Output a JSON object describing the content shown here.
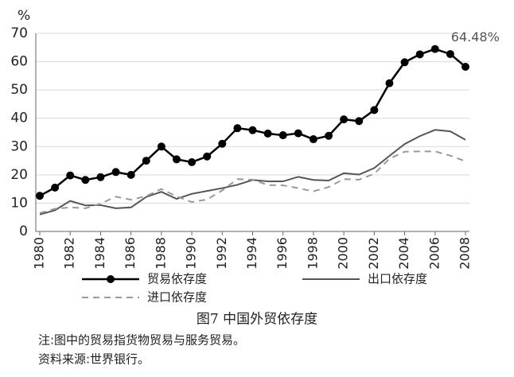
{
  "chart_data": {
    "type": "line",
    "y_label": "%",
    "title": "图7  中国外贸依存度",
    "notes": [
      "注:图中的贸易指货物贸易与服务贸易。",
      "资料来源:世界银行。"
    ],
    "x": [
      1980,
      1981,
      1982,
      1983,
      1984,
      1985,
      1986,
      1987,
      1988,
      1989,
      1990,
      1991,
      1992,
      1993,
      1994,
      1995,
      1996,
      1997,
      1998,
      1999,
      2000,
      2001,
      2002,
      2003,
      2004,
      2005,
      2006,
      2007,
      2008
    ],
    "xlim": [
      1980,
      2008
    ],
    "xticks": [
      1980,
      1982,
      1984,
      1986,
      1988,
      1990,
      1992,
      1994,
      1996,
      1998,
      2000,
      2002,
      2004,
      2006,
      2008
    ],
    "ylim": [
      0,
      70
    ],
    "yticks": [
      0,
      10,
      20,
      30,
      40,
      50,
      60,
      70
    ],
    "grid": true,
    "series": [
      {
        "name": "贸易依存度",
        "color": "#000000",
        "line_style": "solid",
        "marker": "circle",
        "values": [
          12.6,
          15.5,
          19.8,
          18.2,
          19.2,
          21.0,
          20.0,
          25.0,
          30.0,
          25.5,
          24.5,
          26.5,
          31.0,
          36.5,
          35.8,
          34.6,
          34.0,
          34.7,
          32.6,
          33.8,
          39.6,
          39.0,
          42.9,
          52.4,
          59.8,
          62.6,
          64.48,
          62.7,
          58.2
        ],
        "value_labels": [
          null,
          null,
          null,
          null,
          null,
          null,
          null,
          null,
          null,
          null,
          null,
          null,
          null,
          null,
          null,
          null,
          null,
          null,
          null,
          null,
          null,
          null,
          null,
          null,
          null,
          null,
          "64.48%",
          null,
          null
        ]
      },
      {
        "name": "出口依存度",
        "color": "#555555",
        "line_style": "solid",
        "values": [
          6.0,
          7.5,
          10.8,
          9.2,
          9.3,
          8.2,
          8.5,
          12.2,
          14.0,
          11.5,
          13.3,
          14.3,
          15.3,
          16.5,
          18.2,
          17.7,
          17.7,
          19.3,
          18.2,
          18.0,
          20.6,
          20.1,
          22.4,
          26.7,
          30.9,
          33.7,
          35.9,
          35.4,
          32.4
        ]
      },
      {
        "name": "进口依存度",
        "color": "#999999",
        "line_style": "dashed",
        "values": [
          6.5,
          8.0,
          8.5,
          8.2,
          9.8,
          12.3,
          11.2,
          12.5,
          15.0,
          12.4,
          10.4,
          11.3,
          14.5,
          18.5,
          18.3,
          16.4,
          16.3,
          15.3,
          14.2,
          15.7,
          18.5,
          18.3,
          20.4,
          25.7,
          28.2,
          28.3,
          28.3,
          26.8,
          24.8
        ]
      }
    ]
  }
}
